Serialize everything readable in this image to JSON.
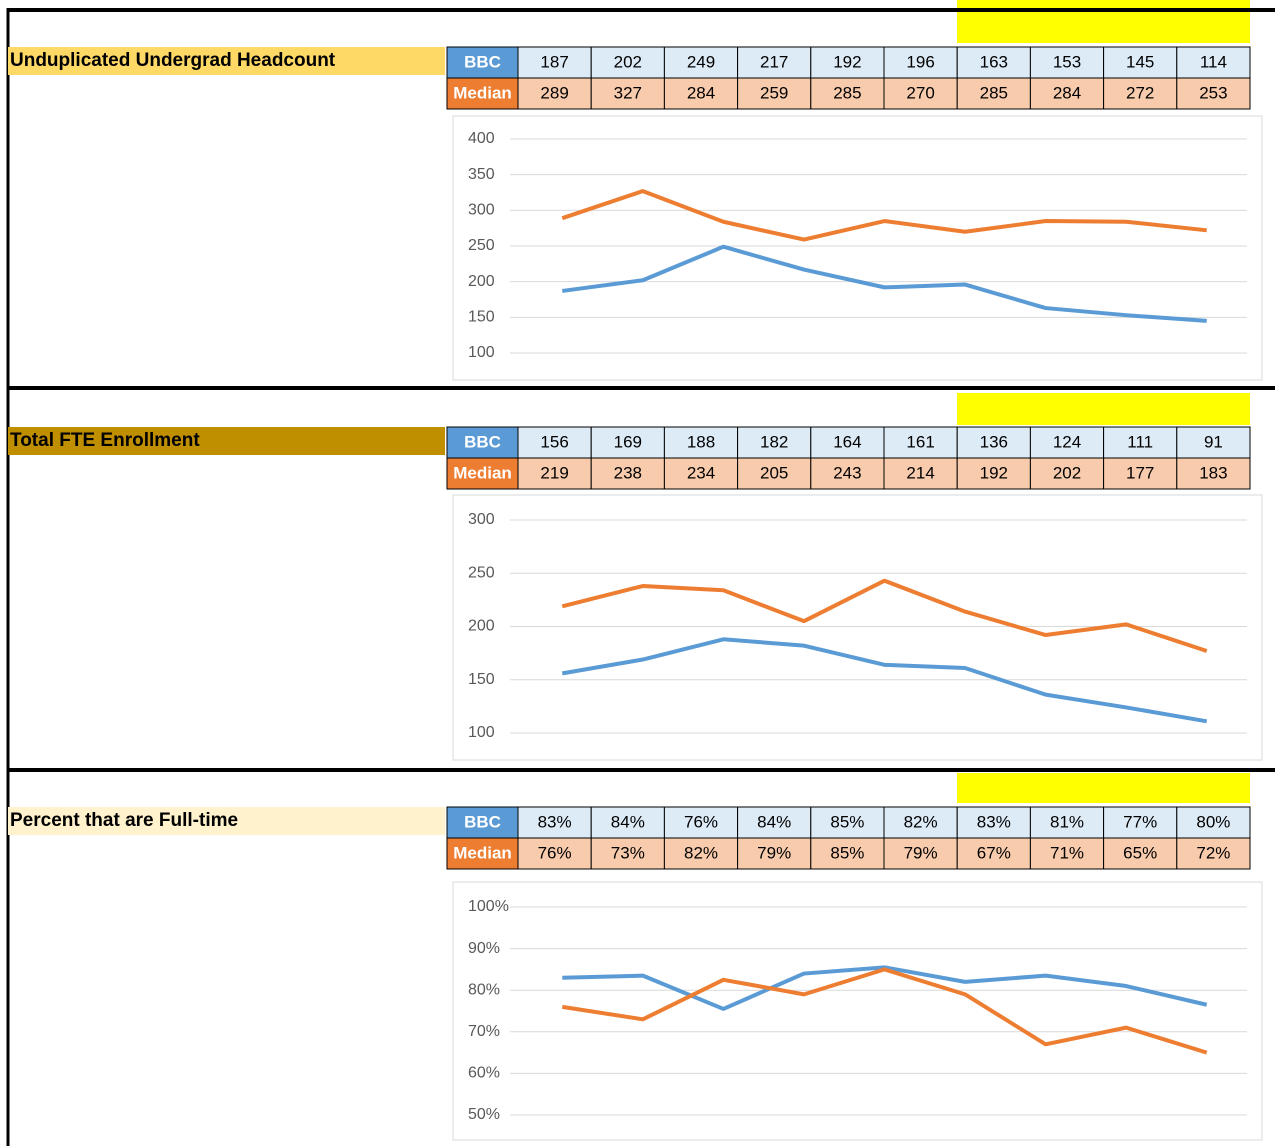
{
  "sections": [
    {
      "label": "Unduplicated Undergrad Headcount",
      "table": {
        "rows": [
          {
            "head": "BBC",
            "cells": [
              "187",
              "202",
              "249",
              "217",
              "192",
              "196",
              "163",
              "153",
              "145",
              "114"
            ]
          },
          {
            "head": "Median",
            "cells": [
              "289",
              "327",
              "284",
              "259",
              "285",
              "270",
              "285",
              "284",
              "272",
              "253"
            ]
          }
        ]
      }
    },
    {
      "label": "Total FTE Enrollment",
      "table": {
        "rows": [
          {
            "head": "BBC",
            "cells": [
              "156",
              "169",
              "188",
              "182",
              "164",
              "161",
              "136",
              "124",
              "111",
              "91"
            ]
          },
          {
            "head": "Median",
            "cells": [
              "219",
              "238",
              "234",
              "205",
              "243",
              "214",
              "192",
              "202",
              "177",
              "183"
            ]
          }
        ]
      }
    },
    {
      "label": "Percent that are Full-time",
      "table": {
        "rows": [
          {
            "head": "BBC",
            "cells": [
              "83%",
              "84%",
              "76%",
              "84%",
              "85%",
              "82%",
              "83%",
              "81%",
              "77%",
              "80%"
            ]
          },
          {
            "head": "Median",
            "cells": [
              "76%",
              "73%",
              "82%",
              "79%",
              "85%",
              "79%",
              "67%",
              "71%",
              "65%",
              "72%"
            ]
          }
        ]
      }
    }
  ],
  "chart_data": [
    {
      "type": "line",
      "ylim": [
        100,
        400
      ],
      "yticks": [
        100,
        150,
        200,
        250,
        300,
        350,
        400
      ],
      "grid": true,
      "series": [
        {
          "color": "#5b9bd5",
          "values": [
            187,
            202,
            249,
            217,
            192,
            196,
            163,
            153,
            145
          ]
        },
        {
          "color": "#ed7d31",
          "values": [
            289,
            327,
            284,
            259,
            285,
            270,
            285,
            284,
            272
          ]
        }
      ]
    },
    {
      "type": "line",
      "ylim": [
        100,
        300
      ],
      "yticks": [
        100,
        150,
        200,
        250,
        300
      ],
      "grid": true,
      "series": [
        {
          "color": "#5b9bd5",
          "values": [
            156,
            169,
            188,
            182,
            164,
            161,
            136,
            124,
            111
          ]
        },
        {
          "color": "#ed7d31",
          "values": [
            219,
            238,
            234,
            205,
            243,
            214,
            192,
            202,
            177
          ]
        }
      ]
    },
    {
      "type": "line",
      "ylim": [
        50,
        100
      ],
      "yticks": [
        {
          "value": 50,
          "label": "50%"
        },
        {
          "value": 60,
          "label": "60%"
        },
        {
          "value": 70,
          "label": "70%"
        },
        {
          "value": 80,
          "label": "80%"
        },
        {
          "value": 90,
          "label": "90%"
        },
        {
          "value": 100,
          "label": "100%"
        }
      ],
      "grid": true,
      "series": [
        {
          "color": "#5b9bd5",
          "values": [
            83,
            83.5,
            75.5,
            84,
            85.5,
            82,
            83.5,
            81,
            76.5
          ]
        },
        {
          "color": "#ed7d31",
          "values": [
            76,
            73,
            82.5,
            79,
            85,
            79,
            67,
            71,
            65
          ]
        }
      ]
    }
  ]
}
